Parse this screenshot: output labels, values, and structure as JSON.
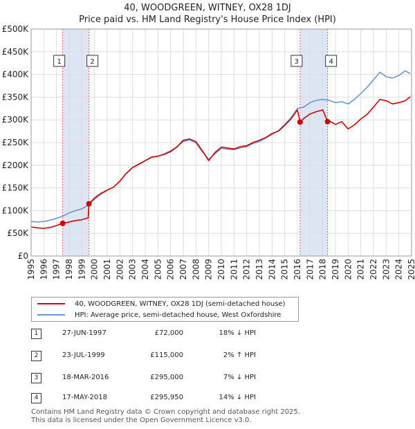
{
  "title_line1": "40, WOODGREEN, WITNEY, OX28 1DJ",
  "title_line2": "Price paid vs. HM Land Registry's House Price Index (HPI)",
  "colors": {
    "property": "#cc0000",
    "hpi": "#6b95c9",
    "shade": "#dde6f4",
    "vline": "#e06060",
    "grid": "#dddddd"
  },
  "chart_data": {
    "type": "line",
    "x_range": [
      1995,
      2025
    ],
    "y_range": [
      0,
      500000
    ],
    "y_ticks": [
      0,
      50000,
      100000,
      150000,
      200000,
      250000,
      300000,
      350000,
      400000,
      450000,
      500000
    ],
    "y_tick_labels": [
      "£0",
      "£50K",
      "£100K",
      "£150K",
      "£200K",
      "£250K",
      "£300K",
      "£350K",
      "£400K",
      "£450K",
      "£500K"
    ],
    "x_ticks": [
      "1995",
      "1996",
      "1997",
      "1998",
      "1999",
      "2000",
      "2001",
      "2002",
      "2003",
      "2004",
      "2005",
      "2006",
      "2007",
      "2008",
      "2009",
      "2010",
      "2011",
      "2012",
      "2013",
      "2014",
      "2015",
      "2016",
      "2017",
      "2018",
      "2019",
      "2020",
      "2021",
      "2022",
      "2023",
      "2024",
      "2025"
    ],
    "shaded_ranges": [
      [
        1997.49,
        1999.56
      ],
      [
        2016.21,
        2018.38
      ]
    ],
    "series": [
      {
        "name": "40, WOODGREEN, WITNEY, OX28 1DJ (semi-detached house)",
        "x": [
          1995.0,
          1995.5,
          1996.0,
          1996.5,
          1997.0,
          1997.49,
          1998.0,
          1998.5,
          1999.0,
          1999.5,
          1999.56,
          2000.0,
          2000.5,
          2001.0,
          2001.5,
          2002.0,
          2002.5,
          2003.0,
          2003.5,
          2004.0,
          2004.5,
          2005.0,
          2005.5,
          2006.0,
          2006.5,
          2007.0,
          2007.5,
          2008.0,
          2008.5,
          2009.0,
          2009.5,
          2010.0,
          2010.5,
          2011.0,
          2011.5,
          2012.0,
          2012.5,
          2013.0,
          2013.5,
          2014.0,
          2014.5,
          2015.0,
          2015.5,
          2016.0,
          2016.21,
          2016.5,
          2017.0,
          2017.5,
          2018.0,
          2018.38,
          2018.5,
          2019.0,
          2019.5,
          2020.0,
          2020.5,
          2021.0,
          2021.5,
          2022.0,
          2022.5,
          2023.0,
          2023.5,
          2024.0,
          2024.5,
          2024.9
        ],
        "values": [
          64000,
          62000,
          61000,
          63000,
          67000,
          72000,
          75000,
          78000,
          80000,
          84000,
          115000,
          128000,
          138000,
          145000,
          152000,
          165000,
          182000,
          195000,
          202000,
          210000,
          218000,
          220000,
          224000,
          230000,
          240000,
          255000,
          258000,
          252000,
          232000,
          210000,
          228000,
          240000,
          238000,
          236000,
          241000,
          243000,
          250000,
          255000,
          261000,
          270000,
          275000,
          288000,
          302000,
          322000,
          295000,
          303000,
          313000,
          318000,
          322000,
          295950,
          298000,
          290000,
          296000,
          280000,
          289000,
          302000,
          312000,
          328000,
          345000,
          342000,
          335000,
          338000,
          342000,
          351000
        ]
      },
      {
        "name": "HPI: Average price, semi-detached house, West Oxfordshire",
        "x": [
          1995.0,
          1995.5,
          1996.0,
          1996.5,
          1997.0,
          1997.5,
          1998.0,
          1998.5,
          1999.0,
          1999.5,
          2000.0,
          2000.5,
          2001.0,
          2001.5,
          2002.0,
          2002.5,
          2003.0,
          2003.5,
          2004.0,
          2004.5,
          2005.0,
          2005.5,
          2006.0,
          2006.5,
          2007.0,
          2007.5,
          2008.0,
          2008.5,
          2009.0,
          2009.5,
          2010.0,
          2010.5,
          2011.0,
          2011.5,
          2012.0,
          2012.5,
          2013.0,
          2013.5,
          2014.0,
          2014.5,
          2015.0,
          2015.5,
          2016.0,
          2016.5,
          2017.0,
          2017.5,
          2018.0,
          2018.5,
          2019.0,
          2019.5,
          2020.0,
          2020.5,
          2021.0,
          2021.5,
          2022.0,
          2022.5,
          2023.0,
          2023.5,
          2024.0,
          2024.5,
          2024.9
        ],
        "values": [
          76000,
          75000,
          76000,
          79000,
          83000,
          88000,
          95000,
          100000,
          104000,
          112000,
          125000,
          136000,
          145000,
          152000,
          165000,
          182000,
          195000,
          203000,
          210000,
          217000,
          220000,
          225000,
          232000,
          241000,
          252000,
          256000,
          249000,
          230000,
          213000,
          225000,
          237000,
          235000,
          234000,
          238000,
          241000,
          248000,
          252000,
          260000,
          268000,
          276000,
          290000,
          305000,
          325000,
          328000,
          338000,
          343000,
          345000,
          343000,
          338000,
          340000,
          335000,
          345000,
          358000,
          372000,
          388000,
          405000,
          395000,
          392000,
          398000,
          408000,
          402000
        ]
      }
    ],
    "sale_markers": [
      {
        "label": "1",
        "x": 1997.49,
        "value": 72000
      },
      {
        "label": "2",
        "x": 1999.56,
        "value": 115000
      },
      {
        "label": "3",
        "x": 2016.21,
        "value": 295000
      },
      {
        "label": "4",
        "x": 2018.38,
        "value": 295950
      }
    ]
  },
  "legend": {
    "property_label": "40, WOODGREEN, WITNEY, OX28 1DJ (semi-detached house)",
    "hpi_label": "HPI: Average price, semi-detached house, West Oxfordshire"
  },
  "transactions": [
    {
      "num": "1",
      "date": "27-JUN-1997",
      "price": "£72,000",
      "hpi": "18% ↓ HPI"
    },
    {
      "num": "2",
      "date": "23-JUL-1999",
      "price": "£115,000",
      "hpi": "2% ↑ HPI"
    },
    {
      "num": "3",
      "date": "18-MAR-2016",
      "price": "£295,000",
      "hpi": "7% ↓ HPI"
    },
    {
      "num": "4",
      "date": "17-MAY-2018",
      "price": "£295,950",
      "hpi": "14% ↓ HPI"
    }
  ],
  "footer_line1": "Contains HM Land Registry data © Crown copyright and database right 2025.",
  "footer_line2": "This data is licensed under the Open Government Licence v3.0."
}
